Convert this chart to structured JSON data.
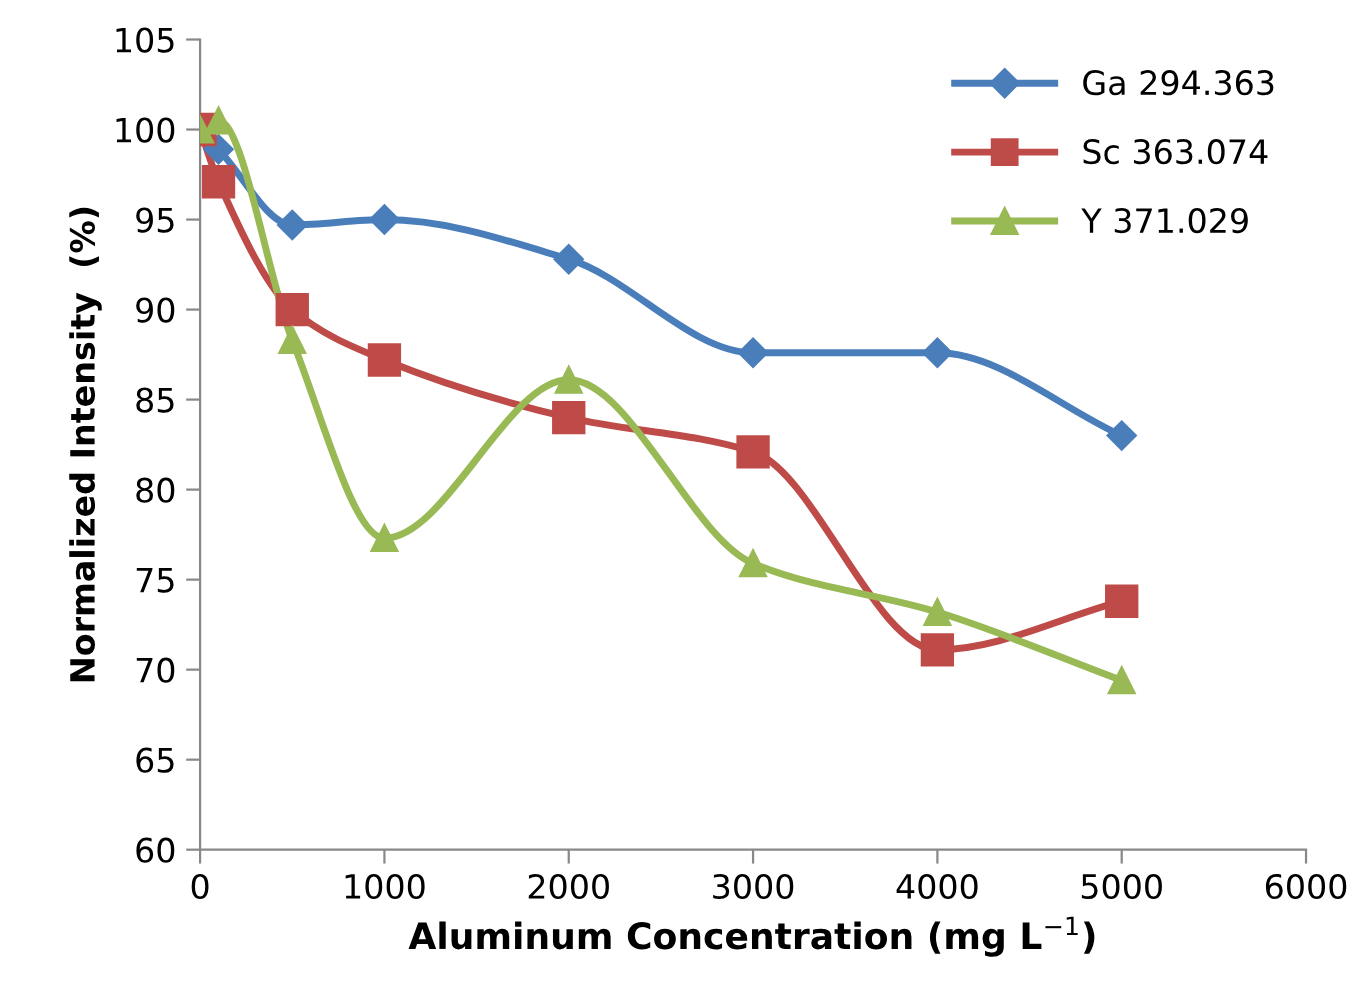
{
  "chart_data": {
    "type": "line",
    "xlabel": "Aluminum Concentration (mg L$^{−1}$)",
    "ylabel": "Normalized Intensity  (%)",
    "x": [
      0,
      100,
      500,
      1000,
      2000,
      3000,
      4000,
      5000
    ],
    "series": [
      {
        "name": "Ga 294.363",
        "color": "#4a7ebb",
        "marker": "diamond",
        "values": [
          100,
          98.9,
          94.7,
          95.0,
          92.8,
          87.6,
          87.6,
          83.0
        ]
      },
      {
        "name": "Sc 363.074",
        "color": "#be4b48",
        "marker": "square",
        "values": [
          100,
          97.1,
          90.0,
          87.2,
          84.0,
          82.1,
          71.1,
          73.8
        ]
      },
      {
        "name": "Y 371.029",
        "color": "#98b954",
        "marker": "triangle",
        "values": [
          100,
          100.5,
          88.3,
          77.3,
          86.1,
          75.9,
          73.2,
          69.4
        ]
      }
    ],
    "xlim": [
      0,
      6000
    ],
    "xticks": [
      0,
      1000,
      2000,
      3000,
      4000,
      5000,
      6000
    ],
    "ylim": [
      60,
      105
    ],
    "yticks": [
      60,
      65,
      70,
      75,
      80,
      85,
      90,
      95,
      100,
      105
    ],
    "grid": false,
    "legend": "top right",
    "line_style": "solid"
  }
}
